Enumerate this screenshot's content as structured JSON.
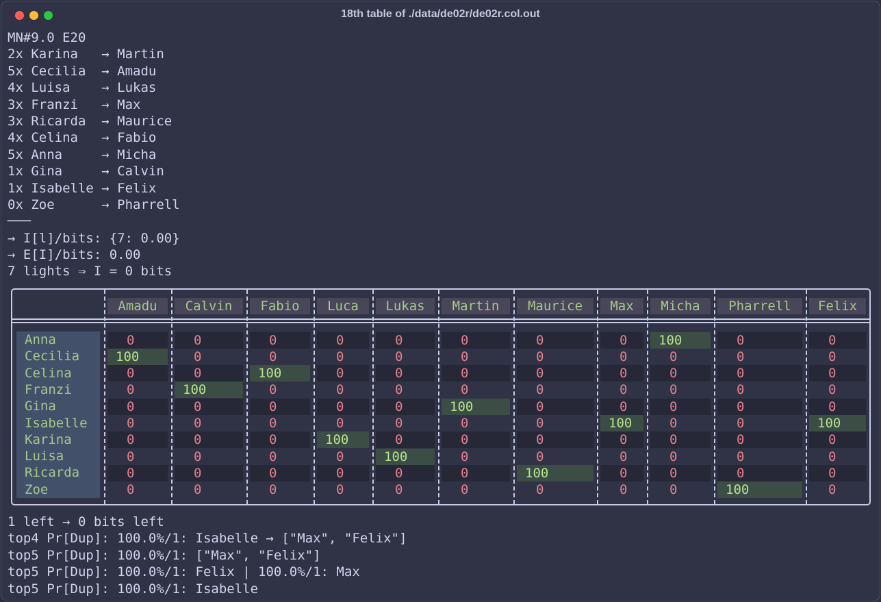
{
  "window": {
    "title": "18th table of ./data/de02r/de02r.col.out"
  },
  "top_lines": [
    "MN#9.0 E20",
    "2x Karina   → Martin",
    "5x Cecilia  → Amadu",
    "4x Luisa    → Lukas",
    "3x Franzi   → Max",
    "3x Ricarda  → Maurice",
    "4x Celina   → Fabio",
    "5x Anna     → Micha",
    "1x Gina     → Calvin",
    "1x Isabelle → Felix",
    "0x Zoe      → Pharrell",
    "───",
    "→ I[l]/bits: {7: 0.00}",
    "→ E[I]/bits: 0.00",
    "7 lights ⇒ I = 0 bits"
  ],
  "table": {
    "columns": [
      "Amadu",
      "Calvin",
      "Fabio",
      "Luca",
      "Lukas",
      "Martin",
      "Maurice",
      "Max",
      "Micha",
      "Pharrell",
      "Felix"
    ],
    "rows": [
      {
        "name": "Anna",
        "values": [
          "0",
          "0",
          "0",
          "0",
          "0",
          "0",
          "0",
          "0",
          "100",
          "0",
          "0"
        ]
      },
      {
        "name": "Cecilia",
        "values": [
          "100",
          "0",
          "0",
          "0",
          "0",
          "0",
          "0",
          "0",
          "0",
          "0",
          "0"
        ]
      },
      {
        "name": "Celina",
        "values": [
          "0",
          "0",
          "100",
          "0",
          "0",
          "0",
          "0",
          "0",
          "0",
          "0",
          "0"
        ]
      },
      {
        "name": "Franzi",
        "values": [
          "0",
          "100",
          "0",
          "0",
          "0",
          "0",
          "0",
          "0",
          "0",
          "0",
          "0"
        ]
      },
      {
        "name": "Gina",
        "values": [
          "0",
          "0",
          "0",
          "0",
          "0",
          "100",
          "0",
          "0",
          "0",
          "0",
          "0"
        ]
      },
      {
        "name": "Isabelle",
        "values": [
          "0",
          "0",
          "0",
          "0",
          "0",
          "0",
          "0",
          "100",
          "0",
          "0",
          "100"
        ]
      },
      {
        "name": "Karina",
        "values": [
          "0",
          "0",
          "0",
          "100",
          "0",
          "0",
          "0",
          "0",
          "0",
          "0",
          "0"
        ]
      },
      {
        "name": "Luisa",
        "values": [
          "0",
          "0",
          "0",
          "0",
          "100",
          "0",
          "0",
          "0",
          "0",
          "0",
          "0"
        ]
      },
      {
        "name": "Ricarda",
        "values": [
          "0",
          "0",
          "0",
          "0",
          "0",
          "0",
          "100",
          "0",
          "0",
          "0",
          "0"
        ]
      },
      {
        "name": "Zoe",
        "values": [
          "0",
          "0",
          "0",
          "0",
          "0",
          "0",
          "0",
          "0",
          "0",
          "100",
          "0"
        ]
      }
    ]
  },
  "bottom_lines": [
    "1 left → 0 bits left",
    "top4 Pr[Dup]: 100.0%/1: Isabelle → [\"Max\", \"Felix\"]",
    "top5 Pr[Dup]: 100.0%/1: [\"Max\", \"Felix\"]",
    "top5 Pr[Dup]: 100.0%/1: Felix | 100.0%/1: Max",
    "top5 Pr[Dup]: 100.0%/1: Isabelle"
  ],
  "colors": {
    "background": "#303246",
    "text": "#cfd3ec",
    "header_text": "#a5c98a",
    "zero_value": "#e1808c",
    "highlight_value": "#b9e08f",
    "highlight_bg": "#3c4d45"
  }
}
